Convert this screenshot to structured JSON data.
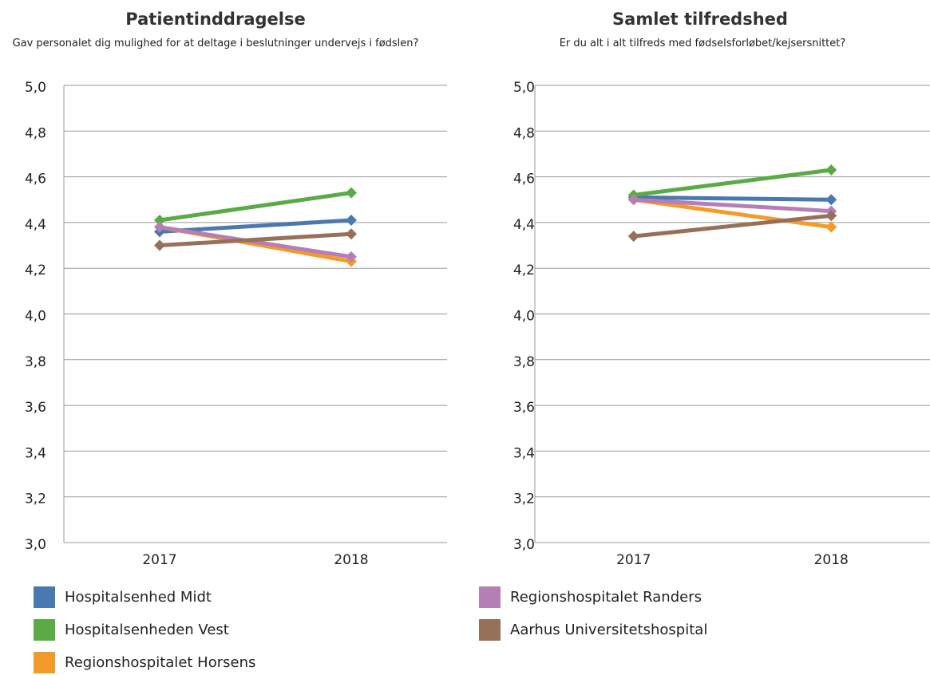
{
  "chart_data": [
    {
      "type": "line",
      "title": "Patientinddragelse",
      "subtitle": "Gav personalet dig mulighed for at deltage i beslutninger undervejs i fødslen?",
      "categories": [
        "2017",
        "2018"
      ],
      "ylim": [
        3.0,
        5.0
      ],
      "yticks": [
        {
          "value": 3.0,
          "label": "3,0"
        },
        {
          "value": 3.2,
          "label": "3,2"
        },
        {
          "value": 3.4,
          "label": "3,4"
        },
        {
          "value": 3.6,
          "label": "3,6"
        },
        {
          "value": 3.8,
          "label": "3,8"
        },
        {
          "value": 4.0,
          "label": "4,0"
        },
        {
          "value": 4.2,
          "label": "4,2"
        },
        {
          "value": 4.4,
          "label": "4,4"
        },
        {
          "value": 4.6,
          "label": "4,6"
        },
        {
          "value": 4.8,
          "label": "4,8"
        },
        {
          "value": 5.0,
          "label": "5,0"
        }
      ],
      "grid": true,
      "series": [
        {
          "name": "Hospitalsenhed Midt",
          "color": "#4a78b0",
          "values": [
            4.36,
            4.41
          ]
        },
        {
          "name": "Hospitalsenheden Vest",
          "color": "#5aaa46",
          "values": [
            4.41,
            4.53
          ]
        },
        {
          "name": "Regionshospitalet Horsens",
          "color": "#f39a2a",
          "values": [
            4.38,
            4.23
          ]
        },
        {
          "name": "Regionshospitalet Randers",
          "color": "#b57fb5",
          "values": [
            4.38,
            4.25
          ]
        },
        {
          "name": "Aarhus Universitetshospital",
          "color": "#97705a",
          "values": [
            4.3,
            4.35
          ]
        }
      ]
    },
    {
      "type": "line",
      "title": "Samlet tilfredshed",
      "subtitle": "Er du alt i alt tilfreds med fødselsforløbet/kejsersnittet?",
      "categories": [
        "2017",
        "2018"
      ],
      "ylim": [
        3.0,
        5.0
      ],
      "yticks": [
        {
          "value": 3.0,
          "label": "3,0"
        },
        {
          "value": 3.2,
          "label": "3,2"
        },
        {
          "value": 3.4,
          "label": "3,4"
        },
        {
          "value": 3.6,
          "label": "3,6"
        },
        {
          "value": 3.8,
          "label": "3,8"
        },
        {
          "value": 4.0,
          "label": "4,0"
        },
        {
          "value": 4.2,
          "label": "4,2"
        },
        {
          "value": 4.4,
          "label": "4,4"
        },
        {
          "value": 4.6,
          "label": "4,6"
        },
        {
          "value": 4.8,
          "label": "4,8"
        },
        {
          "value": 5.0,
          "label": "5,0"
        }
      ],
      "grid": true,
      "series": [
        {
          "color": "#4a78b0",
          "values": [
            4.51,
            4.5
          ]
        },
        {
          "color": "#5aaa46",
          "values": [
            4.52,
            4.63
          ]
        },
        {
          "color": "#f39a2a",
          "values": [
            4.5,
            4.38
          ]
        },
        {
          "color": "#b57fb5",
          "values": [
            4.5,
            4.45
          ]
        },
        {
          "color": "#97705a",
          "values": [
            4.34,
            4.43
          ]
        }
      ]
    }
  ]
}
